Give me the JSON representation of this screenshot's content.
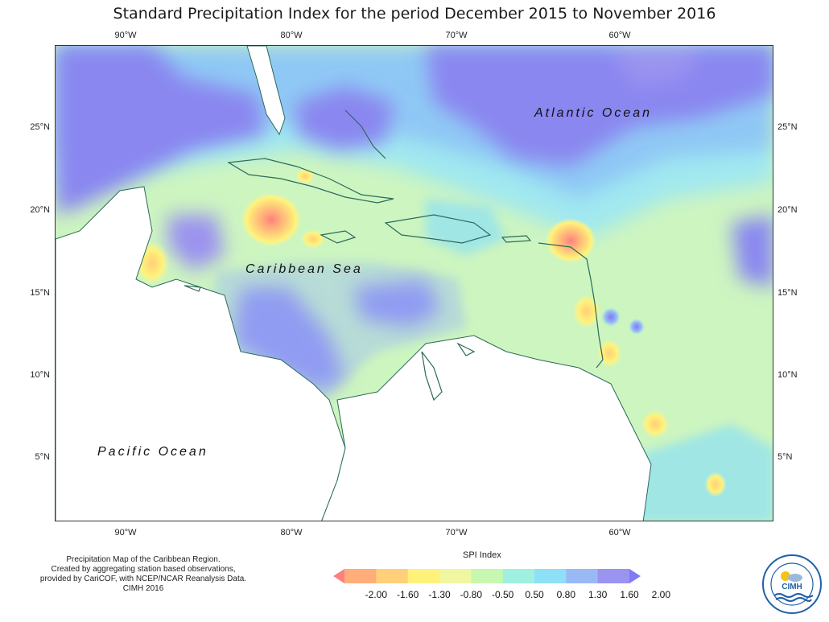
{
  "title": "Standard Precipitation Index for the period December 2015 to November 2016",
  "axes": {
    "lon_ticks": [
      "90°W",
      "80°W",
      "70°W",
      "60°W"
    ],
    "lat_ticks": [
      "25°N",
      "20°N",
      "15°N",
      "10°N",
      "5°N"
    ]
  },
  "ocean_labels": {
    "atlantic": "Atlantic Ocean",
    "caribbean": "Caribbean Sea",
    "pacific": "Pacific Ocean"
  },
  "credits": [
    "Precipitation Map of the Caribbean Region.",
    "Created by aggregating station based observations,",
    "provided by CariCOF, with NCEP/NCAR Reanalysis Data.",
    "CIMH 2016"
  ],
  "legend": {
    "title": "SPI Index",
    "labels": [
      "-2.00",
      "-1.60",
      "-1.30",
      "-0.80",
      "-0.50",
      "0.50",
      "0.80",
      "1.30",
      "1.60",
      "2.00"
    ],
    "colors": [
      "#ff7f7f",
      "#ffae7a",
      "#ffcf7a",
      "#fff27a",
      "#f0f7a0",
      "#c8f7b0",
      "#a0f0e0",
      "#8de0f5",
      "#99b9f5",
      "#9b93f0",
      "#7f7bf5"
    ]
  },
  "logo": {
    "text": "CIMH"
  }
}
